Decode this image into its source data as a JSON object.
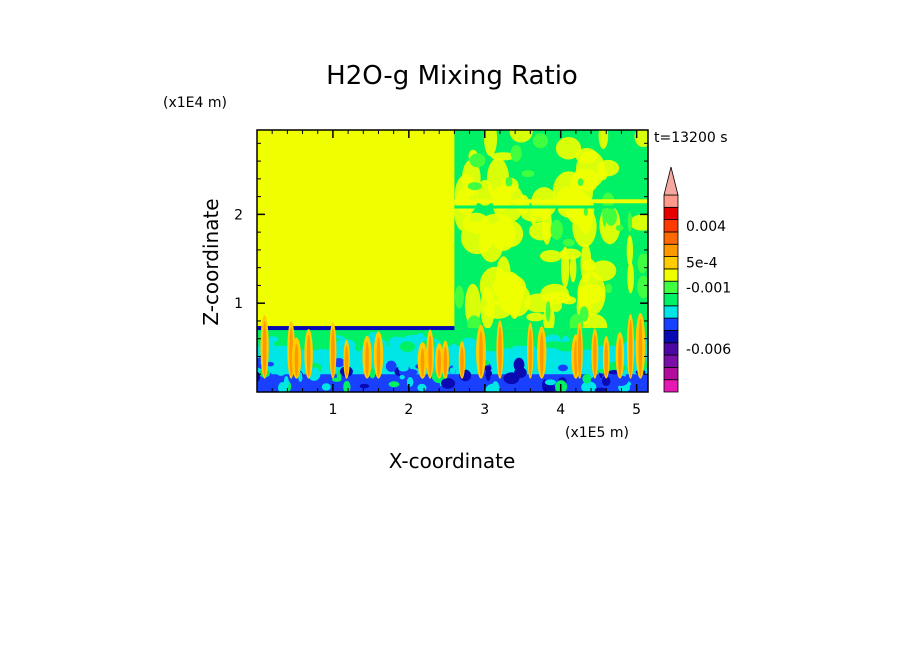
{
  "chart_data": {
    "type": "heatmap",
    "title": "H2O-g Mixing Ratio",
    "xlabel": "X-coordinate",
    "ylabel": "Z-coordinate",
    "x_unit": "(x1E5 m)",
    "y_unit": "(x1E4 m)",
    "time_label": "t=13200 s",
    "xlim": [
      0,
      5.15
    ],
    "ylim": [
      0,
      2.95
    ],
    "x_ticks": [
      1,
      2,
      3,
      4,
      5
    ],
    "x_tick_labels": [
      "1",
      "2",
      "3",
      "4",
      "5"
    ],
    "y_ticks": [
      1,
      2
    ],
    "y_tick_labels": [
      "1",
      "2"
    ],
    "colorbar": {
      "colors": [
        "#e619b3",
        "#b30d9e",
        "#7a10a8",
        "#4d07a2",
        "#0a0ab3",
        "#1a40ff",
        "#00e6e6",
        "#00f066",
        "#40ff40",
        "#f0ff00",
        "#ffcc00",
        "#ff9900",
        "#ff6a00",
        "#ff3b00",
        "#e60000",
        "#ff9a8a"
      ],
      "labels": [
        {
          "text": "0.004",
          "value": 0.004
        },
        {
          "text": "5e-4",
          "value": 0.0005
        },
        {
          "text": "-0.001",
          "value": -0.001
        },
        {
          "text": "-0.006",
          "value": -0.006
        }
      ],
      "extend": "max"
    },
    "regions": [
      {
        "name": "upper-left",
        "x": [
          0,
          2.6
        ],
        "z": [
          0.72,
          2.95
        ],
        "color": "#f0ff00"
      },
      {
        "name": "boundary-layer",
        "x": [
          0,
          5.15
        ],
        "z": [
          0,
          0.72
        ],
        "colors": [
          "#00f066",
          "#00e6e6",
          "#1a40ff",
          "#0a0ab3"
        ]
      },
      {
        "name": "upper-right",
        "x": [
          2.6,
          5.15
        ],
        "z": [
          0.72,
          2.95
        ],
        "colors": [
          "#00f066",
          "#40ff40",
          "#f0ff00"
        ]
      }
    ]
  }
}
